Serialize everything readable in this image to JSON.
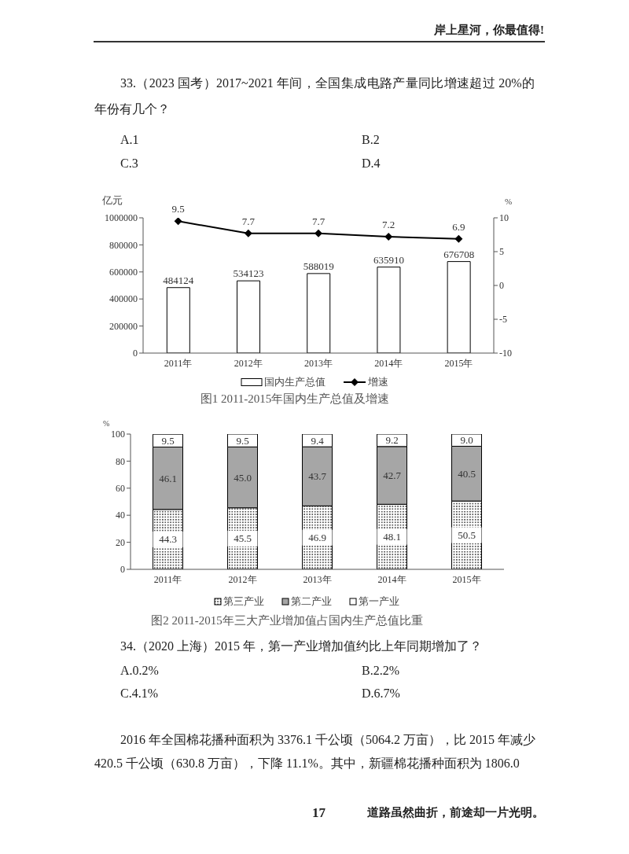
{
  "chart_data": [
    {
      "type": "bar",
      "title": "图1 2011-2015年国内生产总值及增速",
      "categories": [
        "2011年",
        "2012年",
        "2013年",
        "2014年",
        "2015年"
      ],
      "series": [
        {
          "name": "国内生产总值",
          "color": "#ffffff",
          "values": [
            484124,
            534123,
            588019,
            635910,
            676708
          ]
        },
        {
          "name": "增速",
          "type": "line",
          "axis": "y2",
          "color": "#000000",
          "values": [
            9.5,
            7.7,
            7.7,
            7.2,
            6.9
          ]
        }
      ],
      "ylabel": "亿元",
      "y2label": "%",
      "ylim": [
        0,
        1000000
      ],
      "yticks": [
        0,
        200000,
        400000,
        600000,
        800000,
        1000000
      ],
      "y2lim": [
        -10,
        10
      ],
      "y2ticks": [
        -10,
        -5,
        0,
        5,
        10
      ],
      "data_labels": true,
      "legend": "bottom",
      "marker": "diamond",
      "annotations": [
        "岸上星河，你最值得!",
        "33.（2023 国考）2017~2021 年间，全国集成电路产量同比增速超过 20%的年份有几个？",
        "A.1",
        "B.2",
        "C.3",
        "D.4"
      ]
    },
    {
      "type": "bar",
      "stacked": true,
      "title": "图2 2011-2015年三大产业增加值占国内生产总值比重",
      "categories": [
        "2011年",
        "2012年",
        "2013年",
        "2014年",
        "2015年"
      ],
      "series": [
        {
          "name": "第三产业",
          "color": "#000000",
          "values": [
            44.3,
            45.5,
            46.9,
            48.1,
            50.5
          ],
          "value_labels": [
            "44.3",
            "45.5",
            "46.9",
            "48.1",
            "50.5"
          ]
        },
        {
          "name": "第二产业",
          "color": "#a6a6a6",
          "values": [
            46.1,
            45.0,
            43.7,
            42.7,
            40.5
          ],
          "value_labels": [
            "46.1",
            "45.0",
            "43.7",
            "42.7",
            "40.5"
          ]
        },
        {
          "name": "第一产业",
          "color": "#ffffff",
          "values": [
            9.5,
            9.5,
            9.4,
            9.2,
            9.0
          ],
          "value_labels": [
            "9.5",
            "9.5",
            "9.4",
            "9.2",
            "9.0"
          ]
        }
      ],
      "ylabel": "%",
      "ylim": [
        0,
        100
      ],
      "yticks": [
        0,
        20,
        40,
        60,
        80,
        100
      ],
      "legend": "bottom",
      "annotations": [
        "34.（2020 上海）2015 年，第一产业增加值约比上年同期增加了？",
        "A.0.2%",
        "B.2.2%",
        "C.4.1%",
        "D.6.7%",
        "2016 年全国棉花播种面积为 3376.1 千公顷（5064.2 万亩），比 2015 年减少 420.5 千公顷（630.8 万亩），下降 11.1%。其中，新疆棉花播种面积为 1806.0",
        "17",
        "道路虽然曲折，前途却一片光明。"
      ]
    }
  ]
}
